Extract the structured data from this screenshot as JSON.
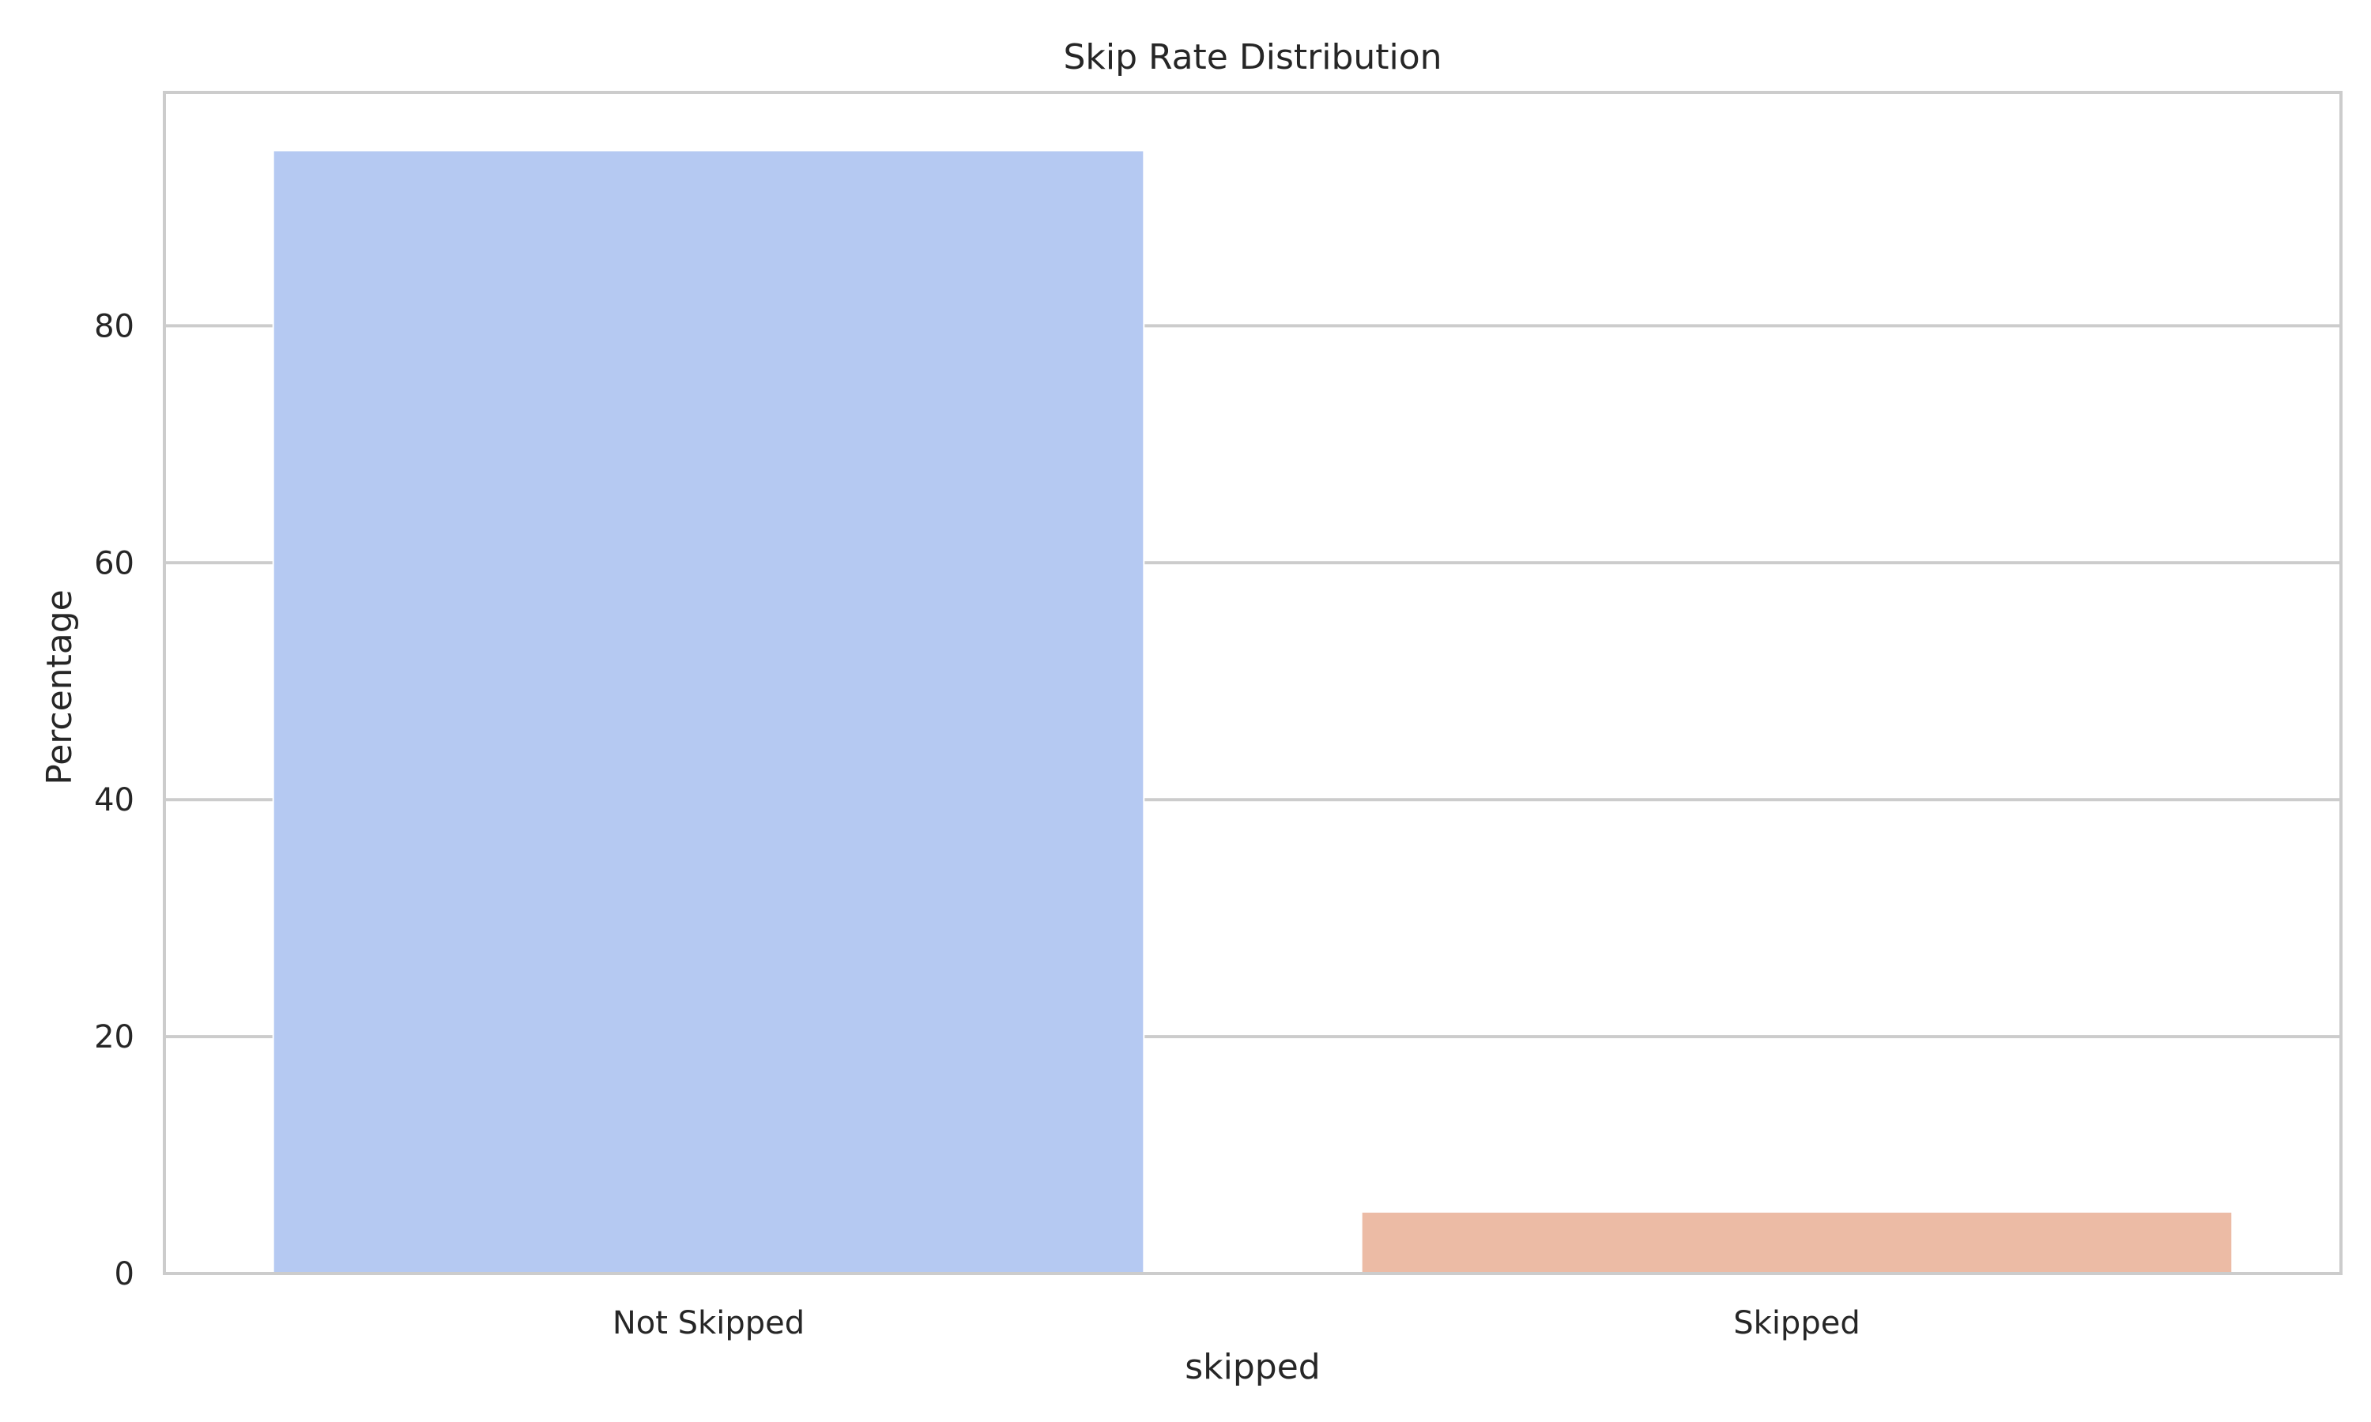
{
  "chart_data": {
    "type": "bar",
    "title": "Skip Rate Distribution",
    "xlabel": "skipped",
    "ylabel": "Percentage",
    "categories": [
      "Not Skipped",
      "Skipped"
    ],
    "values": [
      94.8,
      5.2
    ],
    "colors": [
      "#b5c9f2",
      "#ecbba5"
    ],
    "ylim": [
      0,
      99.7
    ],
    "yticks": [
      0,
      20,
      40,
      60,
      80
    ],
    "grid": true,
    "grid_axis": "y",
    "legend": "none"
  }
}
